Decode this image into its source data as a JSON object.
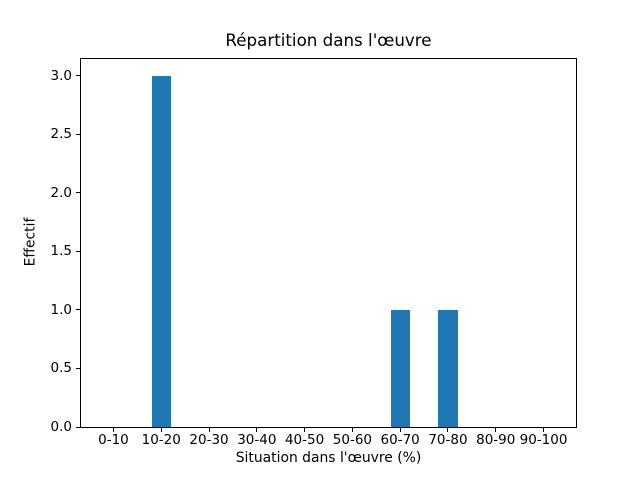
{
  "chart_data": {
    "type": "bar",
    "title": "Répartition dans l'œuvre",
    "xlabel": "Situation dans l'œuvre (%)",
    "ylabel": "Effectif",
    "categories": [
      "0-10",
      "10-20",
      "20-30",
      "30-40",
      "40-50",
      "50-60",
      "60-70",
      "70-80",
      "80-90",
      "90-100"
    ],
    "values": [
      0,
      3,
      0,
      0,
      0,
      0,
      1,
      1,
      0,
      0
    ],
    "ytick_labels": [
      "0.0",
      "0.5",
      "1.0",
      "1.5",
      "2.0",
      "2.5",
      "3.0"
    ],
    "xlim": [
      -0.7,
      9.7
    ],
    "ylim": [
      0,
      3.15
    ],
    "bar_color": "#1f77b4",
    "bar_width_fraction": 0.4,
    "grid": false,
    "legend": "none",
    "background_color": "#ffffff",
    "axis_color": "#000000"
  }
}
